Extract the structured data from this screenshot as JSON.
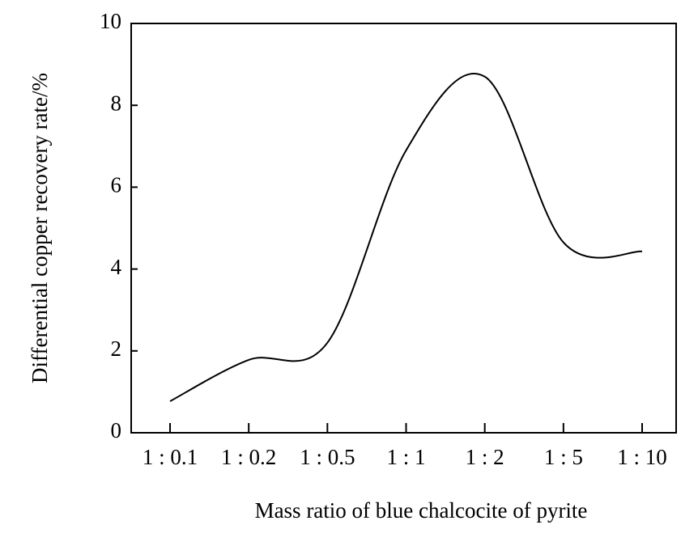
{
  "chart_data": {
    "type": "line",
    "xlabel": "Mass ratio of blue chalcocite of pyrite",
    "ylabel": "Differential copper recovery rate/%",
    "categories": [
      "1 : 0.1",
      "1 : 0.2",
      "1 : 0.5",
      "1 : 1",
      "1 : 2",
      "1 : 5",
      "1 : 10"
    ],
    "series": [
      {
        "name": "Differential copper recovery rate",
        "color": "#000000",
        "values": [
          0.77,
          1.78,
          2.2,
          6.9,
          8.7,
          4.65,
          4.43
        ]
      }
    ],
    "ylim": [
      0,
      10
    ],
    "yticks": [
      0,
      2,
      4,
      6,
      8,
      10
    ],
    "smooth": true
  }
}
